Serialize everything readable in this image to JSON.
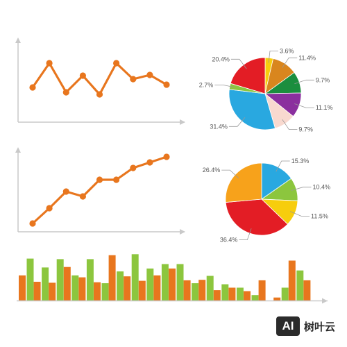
{
  "palette": {
    "orange": "#E8761E",
    "green": "#8CC63E",
    "axis": "#c9c9c9",
    "label": "#555555",
    "leader": "#999999"
  },
  "chart_data": [
    {
      "type": "line",
      "x": [
        1,
        2,
        3,
        4,
        5,
        6,
        7,
        8,
        9
      ],
      "series": [
        {
          "values": [
            5,
            8.5,
            4.3,
            6.7,
            4,
            8.5,
            6.2,
            6.8,
            5.4
          ],
          "color": "#E8761E"
        }
      ],
      "ylim": [
        0,
        12
      ],
      "grid": false
    },
    {
      "type": "pie",
      "slices": [
        {
          "label": "3.6%",
          "value": 3.6,
          "color": "#F7CD0D"
        },
        {
          "label": "11.4%",
          "value": 11.4,
          "color": "#D9861E"
        },
        {
          "label": "9.7%",
          "value": 9.7,
          "color": "#1B8E3E"
        },
        {
          "label": "11.1%",
          "value": 11.1,
          "color": "#8B2F9E"
        },
        {
          "label": "9.7%",
          "value": 9.7,
          "color": "#F8D9CF"
        },
        {
          "label": "31.4%",
          "value": 31.4,
          "color": "#29A8E0"
        },
        {
          "label": "2.7%",
          "value": 2.7,
          "color": "#8CC63E"
        },
        {
          "label": "20.4%",
          "value": 20.4,
          "color": "#E31D25"
        }
      ]
    },
    {
      "type": "line",
      "x": [
        1,
        2,
        3,
        4,
        5,
        6,
        7,
        8,
        9
      ],
      "series": [
        {
          "values": [
            1.2,
            3.4,
            5.8,
            5.1,
            7.5,
            7.5,
            9.2,
            10,
            10.8
          ],
          "color": "#E8761E"
        }
      ],
      "ylim": [
        0,
        12
      ],
      "grid": false
    },
    {
      "type": "pie",
      "slices": [
        {
          "label": "15.3%",
          "value": 15.3,
          "color": "#29A8E0"
        },
        {
          "label": "10.4%",
          "value": 10.4,
          "color": "#8CC63E"
        },
        {
          "label": "11.5%",
          "value": 11.5,
          "color": "#F7CD0D"
        },
        {
          "label": "36.4%",
          "value": 36.4,
          "color": "#E31D25"
        },
        {
          "label": "26.4%",
          "value": 26.4,
          "color": "#F7A21B"
        }
      ]
    },
    {
      "type": "bar",
      "categories": [
        "1",
        "2",
        "3",
        "4",
        "5",
        "6",
        "7",
        "8",
        "9",
        "10",
        "11",
        "12",
        "13",
        "14",
        "15",
        "16",
        "17",
        "18",
        "19",
        "20"
      ],
      "series": [
        {
          "color": "#E8761E",
          "values": [
            5.1,
            3.8,
            3.6,
            6.8,
            4.7,
            3.7,
            9.2,
            4.9,
            4,
            5.1,
            6.5,
            4.1,
            4.2,
            2.1,
            2.6,
            1.9,
            4.1,
            0.6,
            8.1,
            4.1
          ]
        },
        {
          "color": "#8CC63E",
          "values": [
            8.5,
            6.7,
            8.4,
            5.1,
            8.4,
            3.5,
            5.9,
            9.4,
            6.5,
            7.4,
            7.4,
            3.5,
            5,
            3.3,
            2.6,
            1.1,
            0,
            2.6,
            6.1,
            0
          ]
        }
      ],
      "ylim": [
        0,
        10
      ],
      "grid": false
    }
  ],
  "watermark": {
    "logo_mark": "AI",
    "brand_name": "树叶云"
  }
}
